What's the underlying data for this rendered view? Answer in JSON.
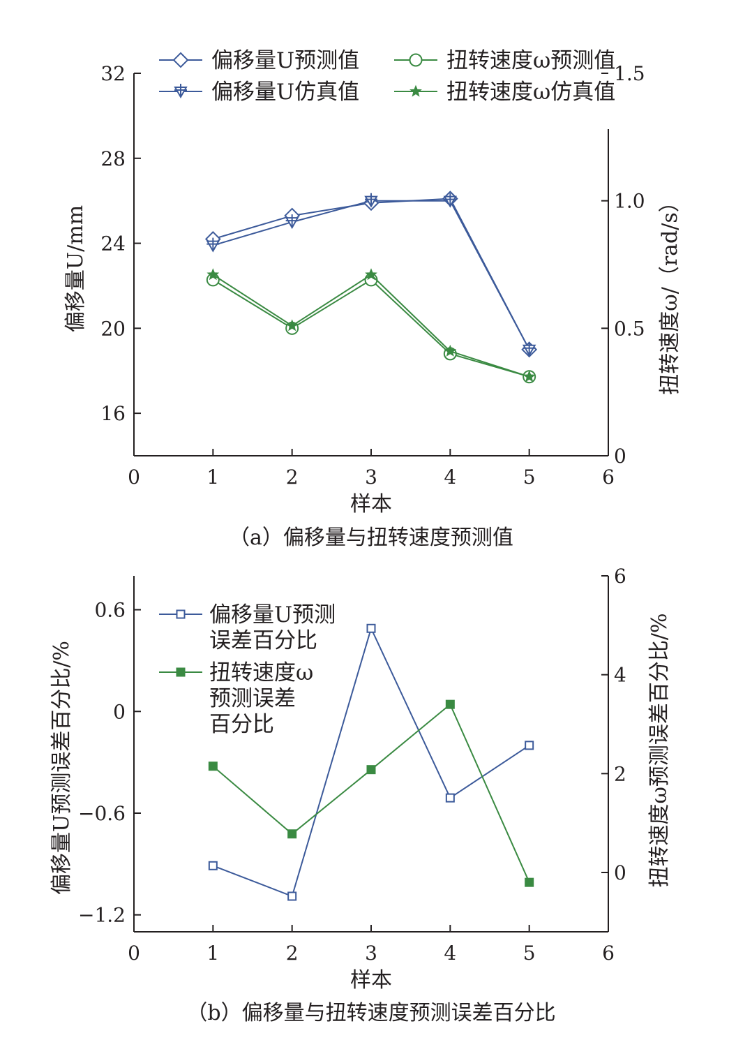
{
  "colors": {
    "blue": "#3c5a9a",
    "green": "#3a8a42",
    "axis": "#231f20"
  },
  "chart_data": [
    {
      "id": "a",
      "type": "line",
      "caption": "（a）偏移量与扭转速度预测值",
      "xlabel": "样本",
      "ylabel_left": "偏移量U/mm",
      "ylabel_right": "扭转速度ω/（rad/s）",
      "xlim": [
        0,
        6
      ],
      "xticks": [
        0,
        1,
        2,
        3,
        4,
        5,
        6
      ],
      "ylim_left": [
        14,
        32
      ],
      "yticks_left": [
        16,
        20,
        24,
        28,
        32
      ],
      "ylim_right": [
        0,
        1.5
      ],
      "yticks_right": [
        "0",
        "0.5",
        "1.0",
        "1.5"
      ],
      "grid": false,
      "legend_position": "top",
      "x": [
        1,
        2,
        3,
        4,
        5
      ],
      "series": [
        {
          "name": "偏移量U预测值",
          "axis": "left",
          "color": "blue",
          "marker": "diamond",
          "values": [
            24.2,
            25.3,
            25.9,
            26.1,
            19.0
          ]
        },
        {
          "name": "偏移量U仿真值",
          "axis": "left",
          "color": "blue",
          "marker": "tri-down-plus",
          "values": [
            23.9,
            25.0,
            26.0,
            26.0,
            19.0
          ]
        },
        {
          "name": "扭转速度ω预测值",
          "axis": "right",
          "color": "green",
          "marker": "circle",
          "values": [
            0.69,
            0.5,
            0.69,
            0.4,
            0.31
          ]
        },
        {
          "name": "扭转速度ω仿真值",
          "axis": "right",
          "color": "green",
          "marker": "star",
          "values": [
            0.71,
            0.51,
            0.71,
            0.41,
            0.31
          ]
        }
      ]
    },
    {
      "id": "b",
      "type": "line",
      "caption": "（b）偏移量与扭转速度预测误差百分比",
      "xlabel": "样本",
      "ylabel_left": "偏移量U预测误差百分比/%",
      "ylabel_right": "扭转速度ω预测误差百分比/%",
      "xlim": [
        0,
        6
      ],
      "xticks": [
        0,
        1,
        2,
        3,
        4,
        5,
        6
      ],
      "ylim_left": [
        -1.3,
        0.8
      ],
      "yticks_left": [
        "−1.2",
        "−0.6",
        "0",
        "0.6"
      ],
      "ylim_right": [
        -1.2,
        6
      ],
      "yticks_right": [
        "0",
        "2",
        "4",
        "6"
      ],
      "grid": false,
      "legend_position": "top-left",
      "x": [
        1,
        2,
        3,
        4,
        5
      ],
      "series": [
        {
          "name": "偏移量U预测误差百分比",
          "legend_lines": [
            "偏移量U预测",
            "误差百分比"
          ],
          "axis": "left",
          "color": "blue",
          "marker": "open-square",
          "values": [
            -0.91,
            -1.09,
            0.49,
            -0.51,
            -0.2
          ]
        },
        {
          "name": "扭转速度ω预测误差百分比",
          "legend_lines": [
            "扭转速度ω",
            "预测误差",
            "百分比"
          ],
          "axis": "right",
          "color": "green",
          "marker": "filled-square",
          "values": [
            2.15,
            0.78,
            2.08,
            3.4,
            -0.2
          ]
        }
      ]
    }
  ]
}
